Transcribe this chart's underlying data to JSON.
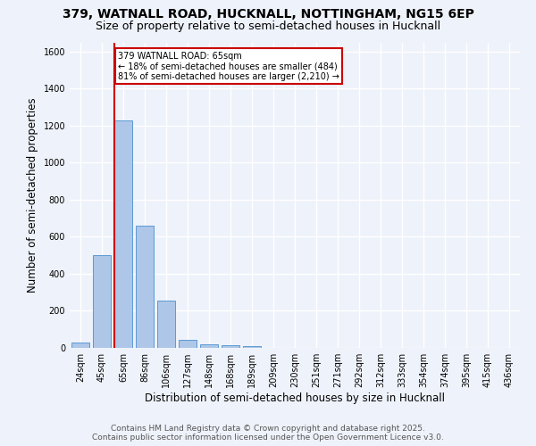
{
  "title1": "379, WATNALL ROAD, HUCKNALL, NOTTINGHAM, NG15 6EP",
  "title2": "Size of property relative to semi-detached houses in Hucknall",
  "xlabel": "Distribution of semi-detached houses by size in Hucknall",
  "ylabel": "Number of semi-detached properties",
  "categories": [
    "24sqm",
    "45sqm",
    "65sqm",
    "86sqm",
    "106sqm",
    "127sqm",
    "148sqm",
    "168sqm",
    "189sqm",
    "209sqm",
    "230sqm",
    "251sqm",
    "271sqm",
    "292sqm",
    "312sqm",
    "333sqm",
    "354sqm",
    "374sqm",
    "395sqm",
    "415sqm",
    "436sqm"
  ],
  "values": [
    30,
    500,
    1230,
    660,
    255,
    45,
    20,
    13,
    12,
    0,
    0,
    0,
    0,
    0,
    0,
    0,
    0,
    0,
    0,
    0,
    0
  ],
  "bar_color": "#aec6e8",
  "bar_edge_color": "#5b9bd5",
  "red_line_index": 2,
  "annotation_text": "379 WATNALL ROAD: 65sqm\n← 18% of semi-detached houses are smaller (484)\n81% of semi-detached houses are larger (2,210) →",
  "annotation_box_color": "#ffffff",
  "annotation_box_edge_color": "#cc0000",
  "ylim": [
    0,
    1650
  ],
  "yticks": [
    0,
    200,
    400,
    600,
    800,
    1000,
    1200,
    1400,
    1600
  ],
  "footer1": "Contains HM Land Registry data © Crown copyright and database right 2025.",
  "footer2": "Contains public sector information licensed under the Open Government Licence v3.0.",
  "bg_color": "#eef2fa",
  "plot_bg_color": "#eef2fa",
  "grid_color": "#ffffff",
  "red_line_color": "#cc0000",
  "title1_fontsize": 10,
  "title2_fontsize": 9,
  "tick_fontsize": 7,
  "label_fontsize": 8.5,
  "footer_fontsize": 6.5
}
